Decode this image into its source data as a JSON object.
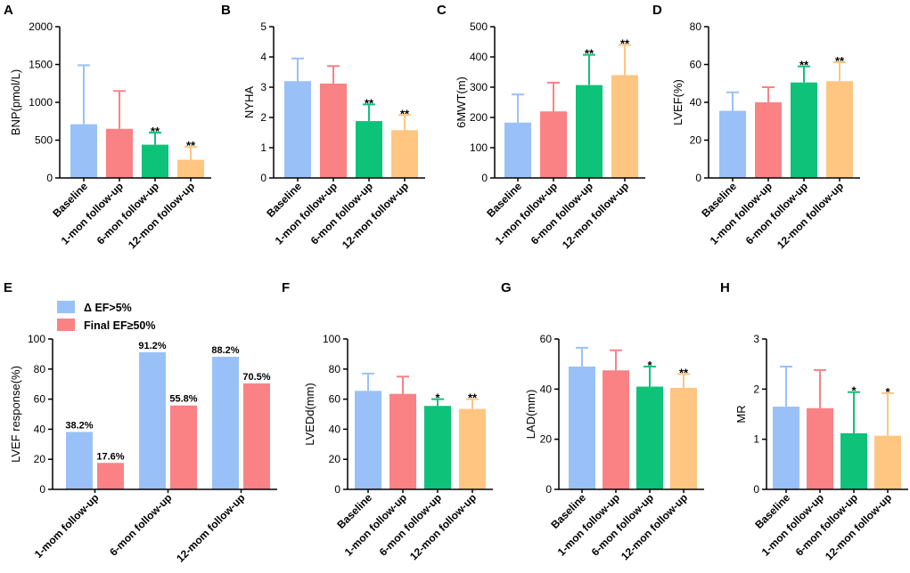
{
  "colors": {
    "baseline": "#99c1f7",
    "m1": "#fa8285",
    "m6": "#0ec27a",
    "m12": "#fec681",
    "ef5": "#99c1f7",
    "ef50": "#fa8285",
    "axis": "#000000"
  },
  "categories": [
    "Baseline",
    "1-mon follow-up",
    "6-mon follow-up",
    "12-mon follow-up"
  ],
  "chart_data": [
    {
      "panel": "A",
      "type": "bar",
      "ylabel": "BNP(pmol/L)",
      "ylim": [
        0,
        2000
      ],
      "yticks": [
        0,
        500,
        1000,
        1500,
        2000
      ],
      "categories": [
        "Baseline",
        "1-mon follow-up",
        "6-mon follow-up",
        "12-mon follow-up"
      ],
      "values": [
        710,
        650,
        440,
        240
      ],
      "errors": [
        780,
        500,
        160,
        170
      ],
      "significance": [
        "",
        "",
        "**",
        "**"
      ]
    },
    {
      "panel": "B",
      "type": "bar",
      "ylabel": "NYHA",
      "ylim": [
        0,
        5
      ],
      "yticks": [
        0,
        1,
        2,
        3,
        4,
        5
      ],
      "categories": [
        "Baseline",
        "1-mon follow-up",
        "6-mon follow-up",
        "12-mon follow-up"
      ],
      "values": [
        3.2,
        3.12,
        1.88,
        1.58
      ],
      "errors": [
        0.75,
        0.58,
        0.55,
        0.5
      ],
      "significance": [
        "",
        "",
        "**",
        "**"
      ]
    },
    {
      "panel": "C",
      "type": "bar",
      "ylabel": "6MWT(m)",
      "ylim": [
        0,
        500
      ],
      "yticks": [
        0,
        100,
        200,
        300,
        400,
        500
      ],
      "categories": [
        "Baseline",
        "1-mon follow-up",
        "6-mon follow-up",
        "12-mon follow-up"
      ],
      "values": [
        183,
        220,
        307,
        340
      ],
      "errors": [
        93,
        95,
        100,
        100
      ],
      "significance": [
        "",
        "",
        "**",
        "**"
      ]
    },
    {
      "panel": "D",
      "type": "bar",
      "ylabel": "LVEF(%)",
      "ylim": [
        0,
        80
      ],
      "yticks": [
        0,
        20,
        40,
        60,
        80
      ],
      "categories": [
        "Baseline",
        "1-mon follow-up",
        "6-mon follow-up",
        "12-mon follow-up"
      ],
      "values": [
        35.5,
        40,
        50.5,
        51.2
      ],
      "errors": [
        9.8,
        8,
        8.5,
        10
      ],
      "significance": [
        "",
        "",
        "**",
        "**"
      ]
    },
    {
      "panel": "E",
      "type": "grouped-bar",
      "ylabel": "LVEF response(%)",
      "ylim": [
        0,
        100
      ],
      "yticks": [
        0,
        20,
        40,
        60,
        80,
        100
      ],
      "categories": [
        "1-mom follow-up",
        "6-mon follow-up",
        "12-mom follow-up"
      ],
      "series": [
        {
          "name": "Δ EF>5%",
          "values": [
            38.2,
            91.2,
            88.2
          ],
          "labels": [
            "38.2%",
            "91.2%",
            "88.2%"
          ]
        },
        {
          "name": "Final EF≥50%",
          "values": [
            17.6,
            55.8,
            70.5
          ],
          "labels": [
            "17.6%",
            "55.8%",
            "70.5%"
          ]
        }
      ],
      "legend": "top-left"
    },
    {
      "panel": "F",
      "type": "bar",
      "ylabel": "LVEDd(mm)",
      "ylim": [
        0,
        100
      ],
      "yticks": [
        0,
        20,
        40,
        60,
        80,
        100
      ],
      "categories": [
        "Baseline",
        "1-mon follow-up",
        "6-mon follow-up",
        "12-mon follow-up"
      ],
      "values": [
        65.5,
        63.5,
        55.5,
        53.5
      ],
      "errors": [
        11.5,
        11.5,
        4.5,
        6.5
      ],
      "significance": [
        "",
        "",
        "*",
        "**"
      ]
    },
    {
      "panel": "G",
      "type": "bar",
      "ylabel": "LAD(mm)",
      "ylim": [
        0,
        60
      ],
      "yticks": [
        0,
        20,
        40,
        60
      ],
      "categories": [
        "Baseline",
        "1-mon follow-up",
        "6-mon follow-up",
        "12-mon follow-up"
      ],
      "values": [
        49,
        47.5,
        41,
        40.5
      ],
      "errors": [
        7.5,
        8,
        8,
        5.5
      ],
      "significance": [
        "",
        "",
        "*",
        "**"
      ]
    },
    {
      "panel": "H",
      "type": "bar",
      "ylabel": "MR",
      "ylim": [
        0,
        3
      ],
      "yticks": [
        0,
        1,
        2,
        3
      ],
      "categories": [
        "Baseline",
        "1-mon follow-up",
        "6-mon follow-up",
        "12-mon follow-up"
      ],
      "values": [
        1.65,
        1.62,
        1.12,
        1.07
      ],
      "errors": [
        0.8,
        0.76,
        0.82,
        0.85
      ],
      "significance": [
        "",
        "",
        "*",
        "*"
      ]
    }
  ]
}
